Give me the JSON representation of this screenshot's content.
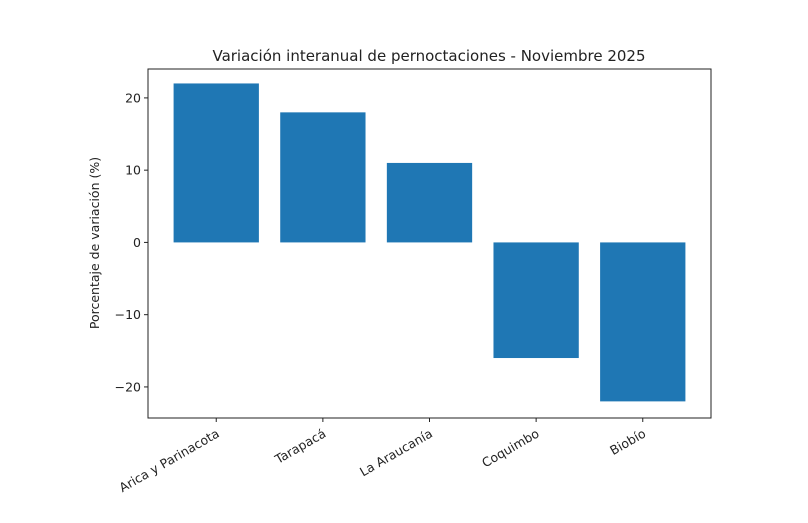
{
  "chart_data": {
    "type": "bar",
    "title": "Variación interanual de pernoctaciones - Noviembre 2025",
    "xlabel": "",
    "ylabel": "Porcentaje de variación (%)",
    "categories": [
      "Arica y Parinacota",
      "Tarapacá",
      "La Araucanía",
      "Coquimbo",
      "Biobío"
    ],
    "values": [
      22,
      18,
      11,
      -16,
      -22
    ],
    "ylim": [
      -24.3,
      24
    ],
    "yticks": [
      -20,
      -10,
      0,
      10,
      20
    ],
    "ytick_labels": [
      "−20",
      "−10",
      "0",
      "10",
      "20"
    ],
    "bar_color": "#1f77b4",
    "grid": false
  }
}
